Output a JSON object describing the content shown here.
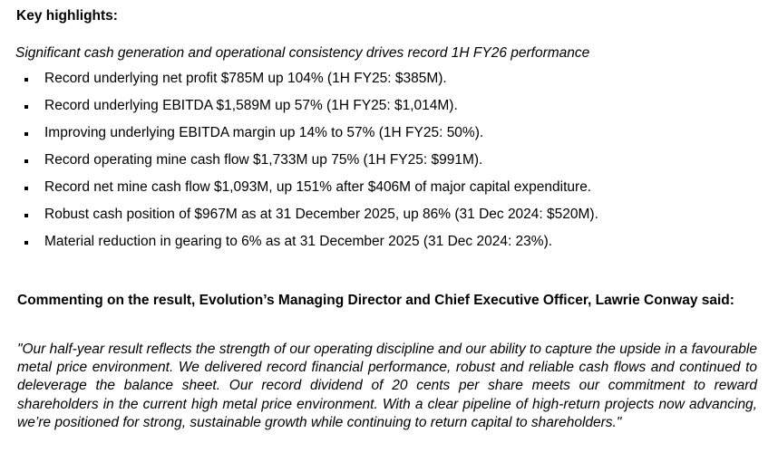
{
  "section": {
    "heading": "Key highlights:",
    "subtitle": "Significant cash generation and operational consistency drives record 1H FY26 performance",
    "bullets": [
      "Record underlying net profit $785M up 104% (1H FY25: $385M).",
      "Record underlying EBITDA $1,589M  up 57%  (1H FY25: $1,014M).",
      "Improving underlying EBITDA margin up 14% to 57% (1H FY25: 50%).",
      "Record operating mine cash flow $1,733M up 75% (1H FY25: $991M).",
      "Record net mine cash flow $1,093M, up 151% after $406M of major capital expenditure.",
      "Robust cash position of $967M as at 31 December 2025, up 86% (31 Dec 2024: $520M).",
      "Material reduction in gearing to 6% as at 31 December 2025 (31 Dec 2024: 23%)."
    ]
  },
  "comment": {
    "heading": "Commenting on the result, Evolution’s Managing Director and Chief Executive Officer, Lawrie Conway said:",
    "quote": "\"Our half-year result reflects the strength of our operating discipline and our ability to capture the upside in a favourable metal price environment. We delivered record financial performance, robust and reliable cash flows and continued to deleverage the balance sheet. Our record dividend of 20 cents per share meets our commitment to reward shareholders in the current high metal price environment. With a clear pipeline of high-return projects now advancing, we’re positioned for strong, sustainable growth while continuing to return capital to shareholders.\""
  }
}
